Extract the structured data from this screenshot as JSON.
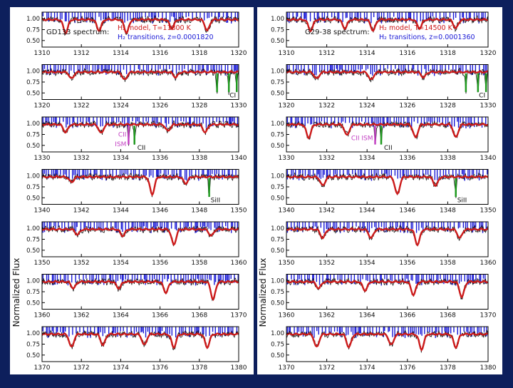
{
  "colors": {
    "background": "#0d1f5c",
    "panel_bg": "#ffffff",
    "data_line": "#111111",
    "model_line": "#cc1a1a",
    "transition_ticks": "#1a1ad6",
    "ci_marker": "#1f9a1f",
    "ism_marker": "#c23fc2"
  },
  "ylabel": "Normalized Flux",
  "chart_data": [
    {
      "type": "line",
      "star": "GD133",
      "legend": {
        "spectrum": "GD133 spectrum:",
        "model": "H₂ model, T=11800 K",
        "transitions": "H₂ transitions, z=0.0001820"
      },
      "y_ticks": [
        "1.00",
        "0.75",
        "0.50"
      ],
      "ylim": [
        0.35,
        1.15
      ],
      "panels": [
        {
          "xlim": [
            1310,
            1320
          ],
          "x_ticks": [
            "1310",
            "1312",
            "1314",
            "1316",
            "1318",
            "1320"
          ],
          "dips": [
            [
              1311.2,
              0.3
            ],
            [
              1312.9,
              0.25
            ],
            [
              1314.3,
              0.3
            ],
            [
              1316.6,
              0.2
            ],
            [
              1318.4,
              0.25
            ]
          ],
          "annotations": []
        },
        {
          "xlim": [
            1320,
            1330
          ],
          "x_ticks": [
            "1320",
            "1322",
            "1324",
            "1326",
            "1328",
            "1330"
          ],
          "dips": [
            [
              1321.5,
              0.15
            ],
            [
              1324.2,
              0.18
            ],
            [
              1326.8,
              0.12
            ]
          ],
          "annotations": [
            {
              "label": "CI",
              "x": [
                1328.9,
                1329.5,
                1329.9
              ],
              "color": "ci"
            }
          ]
        },
        {
          "xlim": [
            1330,
            1340
          ],
          "x_ticks": [
            "1330",
            "1332",
            "1334",
            "1336",
            "1338",
            "1340"
          ],
          "dips": [
            [
              1331.2,
              0.18
            ],
            [
              1333.0,
              0.2
            ],
            [
              1336.4,
              0.15
            ],
            [
              1338.3,
              0.18
            ]
          ],
          "annotations": [
            {
              "label": "CII ISM",
              "x": [
                1334.4
              ],
              "color": "ism"
            },
            {
              "label": "CII",
              "x": [
                1334.7
              ],
              "color": "ci"
            }
          ]
        },
        {
          "xlim": [
            1340,
            1350
          ],
          "x_ticks": [
            "1340",
            "1342",
            "1344",
            "1346",
            "1348",
            "1350"
          ],
          "dips": [
            [
              1341.5,
              0.12
            ],
            [
              1345.6,
              0.4
            ],
            [
              1347.3,
              0.15
            ]
          ],
          "annotations": [
            {
              "label": "SiII",
              "x": [
                1348.5
              ],
              "color": "ci"
            }
          ]
        },
        {
          "xlim": [
            1350,
            1360
          ],
          "x_ticks": [
            "1350",
            "1352",
            "1354",
            "1356",
            "1358",
            "1360"
          ],
          "dips": [
            [
              1351.8,
              0.12
            ],
            [
              1354.1,
              0.15
            ],
            [
              1356.7,
              0.35
            ],
            [
              1358.6,
              0.15
            ]
          ],
          "annotations": []
        },
        {
          "xlim": [
            1360,
            1370
          ],
          "x_ticks": [
            "1360",
            "1362",
            "1364",
            "1366",
            "1368",
            "1370"
          ],
          "dips": [
            [
              1361.6,
              0.15
            ],
            [
              1363.9,
              0.15
            ],
            [
              1366.3,
              0.25
            ],
            [
              1368.7,
              0.4
            ]
          ],
          "annotations": []
        },
        {
          "xlim": [
            1370,
            1380
          ],
          "x_ticks": [
            "1370",
            "1372",
            "1374",
            "1376",
            "1378",
            "1380"
          ],
          "dips": [
            [
              1371.5,
              0.3
            ],
            [
              1373.1,
              0.25
            ],
            [
              1375.2,
              0.25
            ],
            [
              1376.7,
              0.3
            ],
            [
              1378.4,
              0.3
            ]
          ],
          "annotations": []
        }
      ]
    },
    {
      "type": "line",
      "star": "G29-38",
      "legend": {
        "spectrum": "G29-38 spectrum:",
        "model": "H₂ model, T=14500 K",
        "transitions": "H₂ transitions, z=0.0001360"
      },
      "y_ticks": [
        "1.00",
        "0.75",
        "0.50"
      ],
      "ylim": [
        0.35,
        1.15
      ],
      "panels": [
        {
          "xlim": [
            1310,
            1320
          ],
          "x_ticks": [
            "1310",
            "1312",
            "1314",
            "1316",
            "1318",
            "1320"
          ],
          "dips": [
            [
              1311.2,
              0.25
            ],
            [
              1312.9,
              0.2
            ],
            [
              1314.3,
              0.25
            ],
            [
              1316.6,
              0.2
            ],
            [
              1318.4,
              0.2
            ]
          ],
          "annotations": []
        },
        {
          "xlim": [
            1320,
            1330
          ],
          "x_ticks": [
            "1320",
            "1322",
            "1324",
            "1326",
            "1328",
            "1330"
          ],
          "dips": [
            [
              1321.5,
              0.15
            ],
            [
              1324.2,
              0.18
            ],
            [
              1326.8,
              0.12
            ]
          ],
          "annotations": [
            {
              "label": "CI",
              "x": [
                1328.9,
                1329.5,
                1329.9
              ],
              "color": "ci"
            }
          ]
        },
        {
          "xlim": [
            1330,
            1340
          ],
          "x_ticks": [
            "1330",
            "1332",
            "1334",
            "1336",
            "1338",
            "1340"
          ],
          "dips": [
            [
              1331.1,
              0.3
            ],
            [
              1333.0,
              0.25
            ],
            [
              1336.4,
              0.3
            ],
            [
              1338.4,
              0.3
            ]
          ],
          "annotations": [
            {
              "label": "CII ISM",
              "x": [
                1334.4
              ],
              "color": "ism"
            },
            {
              "label": "CII",
              "x": [
                1334.7
              ],
              "color": "ci"
            }
          ]
        },
        {
          "xlim": [
            1340,
            1350
          ],
          "x_ticks": [
            "1340",
            "1342",
            "1344",
            "1346",
            "1348",
            "1350"
          ],
          "dips": [
            [
              1341.8,
              0.2
            ],
            [
              1345.5,
              0.4
            ],
            [
              1347.4,
              0.2
            ]
          ],
          "annotations": [
            {
              "label": "SiII",
              "x": [
                1348.4
              ],
              "color": "ci"
            }
          ]
        },
        {
          "xlim": [
            1350,
            1360
          ],
          "x_ticks": [
            "1350",
            "1352",
            "1354",
            "1356",
            "1358",
            "1360"
          ],
          "dips": [
            [
              1351.8,
              0.2
            ],
            [
              1354.2,
              0.2
            ],
            [
              1356.5,
              0.35
            ],
            [
              1358.6,
              0.2
            ]
          ],
          "annotations": []
        },
        {
          "xlim": [
            1360,
            1370
          ],
          "x_ticks": [
            "1360",
            "1362",
            "1364",
            "1366",
            "1368",
            "1370"
          ],
          "dips": [
            [
              1361.6,
              0.15
            ],
            [
              1363.9,
              0.2
            ],
            [
              1366.3,
              0.3
            ],
            [
              1368.7,
              0.35
            ]
          ],
          "annotations": []
        },
        {
          "xlim": [
            1370,
            1380
          ],
          "x_ticks": [
            "1370",
            "1372",
            "1374",
            "1376",
            "1378",
            "1380"
          ],
          "dips": [
            [
              1371.5,
              0.3
            ],
            [
              1373.1,
              0.3
            ],
            [
              1375.2,
              0.25
            ],
            [
              1376.7,
              0.35
            ],
            [
              1378.4,
              0.3
            ]
          ],
          "annotations": []
        }
      ]
    }
  ]
}
